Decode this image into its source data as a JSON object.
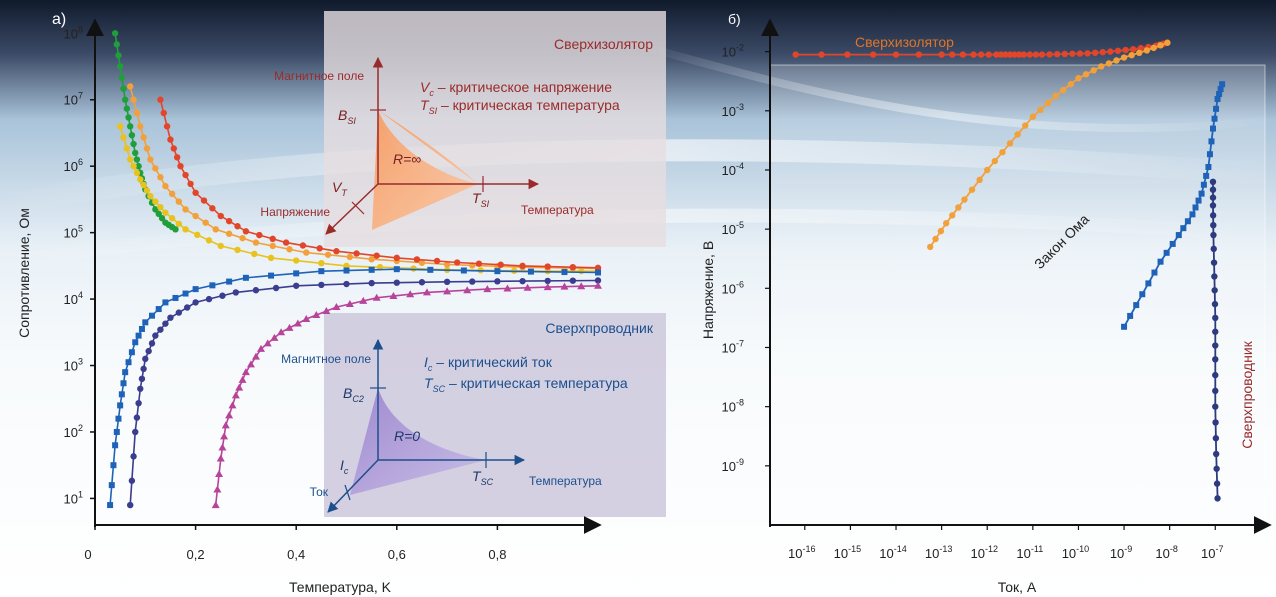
{
  "panel_a": {
    "label": "а)",
    "chart_data": {
      "type": "line",
      "xlabel": "Температура, K",
      "ylabel": "Сопротивление, Ом",
      "xlim": [
        0,
        1.0
      ],
      "ylog": true,
      "ylim_exp": [
        0.6,
        8.2
      ],
      "x_ticks": [
        "0",
        "0,2",
        "0,4",
        "0,6",
        "0,8"
      ],
      "x_tick_values": [
        0,
        0.2,
        0.4,
        0.6,
        0.8
      ],
      "y_tick_exps": [
        1,
        2,
        3,
        4,
        5,
        6,
        7,
        8
      ],
      "y_tick_base": "10",
      "series": [
        {
          "color": "#1f9e3a",
          "marker": "circle",
          "x": [
            0.04,
            0.05,
            0.06,
            0.07,
            0.08,
            0.09,
            0.1,
            0.12,
            0.14,
            0.16
          ],
          "y_exp": [
            8.0,
            7.5,
            7.0,
            6.6,
            6.2,
            5.9,
            5.65,
            5.35,
            5.15,
            5.05
          ]
        },
        {
          "color": "#e8c21e",
          "marker": "circle",
          "x": [
            0.05,
            0.07,
            0.09,
            0.11,
            0.14,
            0.18,
            0.25,
            0.35,
            0.5,
            0.7,
            0.9,
            1.0
          ],
          "y_exp": [
            6.6,
            6.1,
            5.8,
            5.55,
            5.3,
            5.05,
            4.8,
            4.62,
            4.5,
            4.44,
            4.42,
            4.42
          ]
        },
        {
          "color": "#f2a03a",
          "marker": "circle",
          "x": [
            0.07,
            0.09,
            0.11,
            0.14,
            0.18,
            0.24,
            0.32,
            0.42,
            0.55,
            0.7,
            0.85,
            1.0
          ],
          "y_exp": [
            7.2,
            6.6,
            6.1,
            5.7,
            5.35,
            5.05,
            4.85,
            4.7,
            4.6,
            4.52,
            4.48,
            4.46
          ]
        },
        {
          "color": "#e2462a",
          "marker": "circle",
          "x": [
            0.13,
            0.15,
            0.17,
            0.2,
            0.25,
            0.3,
            0.38,
            0.48,
            0.6,
            0.72,
            0.85,
            1.0
          ],
          "y_exp": [
            7.0,
            6.4,
            6.0,
            5.6,
            5.25,
            5.02,
            4.85,
            4.72,
            4.62,
            4.55,
            4.5,
            4.47
          ]
        },
        {
          "color": "#1e63b8",
          "marker": "square",
          "x": [
            0.03,
            0.04,
            0.05,
            0.06,
            0.08,
            0.1,
            0.14,
            0.2,
            0.3,
            0.45,
            0.6,
            0.8,
            1.0
          ],
          "y_exp": [
            0.9,
            1.8,
            2.4,
            2.9,
            3.35,
            3.65,
            3.95,
            4.15,
            4.32,
            4.42,
            4.45,
            4.42,
            4.4
          ]
        },
        {
          "color": "#3b3d8e",
          "marker": "circle",
          "x": [
            0.07,
            0.08,
            0.09,
            0.1,
            0.12,
            0.15,
            0.2,
            0.28,
            0.4,
            0.55,
            0.7,
            0.85,
            1.0
          ],
          "y_exp": [
            0.9,
            2.0,
            2.65,
            3.1,
            3.45,
            3.72,
            3.95,
            4.1,
            4.2,
            4.24,
            4.26,
            4.27,
            4.28
          ]
        },
        {
          "color": "#b8449a",
          "marker": "triangle",
          "x": [
            0.24,
            0.25,
            0.26,
            0.28,
            0.3,
            0.33,
            0.37,
            0.42,
            0.48,
            0.56,
            0.66,
            0.78,
            0.9,
            1.0
          ],
          "y_exp": [
            0.9,
            1.6,
            2.1,
            2.55,
            2.9,
            3.25,
            3.5,
            3.7,
            3.88,
            4.02,
            4.1,
            4.15,
            4.18,
            4.2
          ]
        }
      ]
    },
    "insulator_inset": {
      "title": "Сверхизолятор",
      "axis_magnetic": "Магнитное поле",
      "axis_voltage": "Напряжение",
      "axis_temperature": "Температура",
      "legend_line1_sym": "V",
      "legend_line1_sub": "c",
      "legend_line1_text": " – критическое напряжение",
      "legend_line2_sym": "T",
      "legend_line2_sub": "SI",
      "legend_line2_text": " – критическая температура",
      "b_sym": "B",
      "b_sub": "SI",
      "v_sym": "V",
      "v_sub": "T",
      "t_sym": "T",
      "t_sub": "SI",
      "region_label": "R=∞"
    },
    "superconductor_inset": {
      "title": "Сверхпроводник",
      "axis_magnetic": "Магнитное поле",
      "axis_current": "Ток",
      "axis_temperature": "Температура",
      "legend_line1_sym": "I",
      "legend_line1_sub": "c",
      "legend_line1_text": " – критический ток",
      "legend_line2_sym": "T",
      "legend_line2_sub": "SC",
      "legend_line2_text": " – критическая температура",
      "b_sym": "B",
      "b_sub": "C2",
      "i_sym": "I",
      "i_sub": "c",
      "t_sym": "T",
      "t_sub": "SC",
      "region_label": "R=0"
    }
  },
  "panel_b": {
    "label": "б)",
    "chart_data": {
      "type": "line",
      "xlabel": "Ток, A",
      "ylabel": "Напряжение, B",
      "xlog": true,
      "ylog": true,
      "xlim_exp": [
        -16.5,
        -5.8
      ],
      "ylim_exp": [
        -10.0,
        -1.55
      ],
      "x_tick_exps": [
        -16,
        -15,
        -14,
        -13,
        -12,
        -11,
        -10,
        -9,
        -8,
        -7
      ],
      "y_tick_exps": [
        -9,
        -8,
        -7,
        -6,
        -5,
        -4,
        -3,
        -2
      ],
      "tick_base": "10",
      "annotation_insulator": "Сверхизолятор",
      "annotation_superconductor": "Сверхпроводник",
      "annotation_ohm": "Закон Ома",
      "series": [
        {
          "color": "#e2462a",
          "marker": "circle",
          "x_exp": [
            -16.2,
            -14.5,
            -13.0,
            -12.3,
            -11.8,
            -11.5,
            -11.2,
            -10.8,
            -10.3,
            -9.8,
            -9.3,
            -8.8,
            -8.3,
            -8.05
          ],
          "y_exp": [
            -2.05,
            -2.05,
            -2.05,
            -2.05,
            -2.05,
            -2.05,
            -2.05,
            -2.05,
            -2.04,
            -2.03,
            -2.0,
            -1.96,
            -1.9,
            -1.85
          ]
        },
        {
          "color": "#f2a03a",
          "marker": "circle",
          "x_exp": [
            -13.25,
            -12.9,
            -12.5,
            -12.0,
            -11.5,
            -11.0,
            -10.5,
            -10.0,
            -9.5,
            -9.0,
            -8.5,
            -8.05
          ],
          "y_exp": [
            -5.3,
            -4.9,
            -4.5,
            -4.0,
            -3.55,
            -3.1,
            -2.75,
            -2.45,
            -2.25,
            -2.1,
            -1.98,
            -1.85
          ]
        },
        {
          "color": "#1e63b8",
          "marker": "square",
          "x_exp": [
            -9.0,
            -8.6,
            -8.2,
            -7.8,
            -7.5,
            -7.3,
            -7.15,
            -7.05,
            -6.95,
            -6.85
          ],
          "y_exp": [
            -6.65,
            -6.1,
            -5.55,
            -5.1,
            -4.75,
            -4.4,
            -3.95,
            -3.3,
            -2.8,
            -2.55
          ]
        },
        {
          "color": "#2e3a7e",
          "marker": "circle",
          "x_exp": [
            -6.95,
            -6.98,
            -7.0,
            -7.0,
            -7.0,
            -7.02,
            -7.04,
            -7.05,
            -7.05
          ],
          "y_exp": [
            -9.55,
            -8.8,
            -8.0,
            -7.2,
            -6.5,
            -5.8,
            -5.1,
            -4.6,
            -4.2
          ]
        }
      ]
    }
  }
}
